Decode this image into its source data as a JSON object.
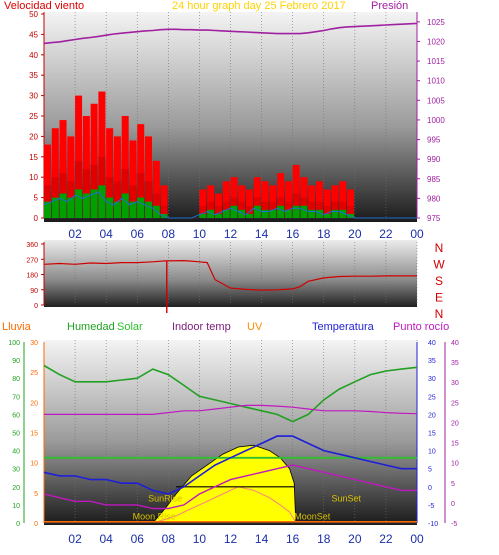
{
  "colors": {
    "wind": "#e00000",
    "gust": "#ff0000",
    "windAvg": "#00a000",
    "windLine": "#1e6fd0",
    "pressure": "#a020a0",
    "direction": "#d00000",
    "humidity": "#22a022",
    "solar": "#2ec02e",
    "indoor": "#1c9a1c",
    "uv": "#ff8c00",
    "temperature": "#1f1fd8",
    "dewpoint": "#c018c0",
    "sun": "#ffff00",
    "sunLine": "#ff8080",
    "title": "#ffd200",
    "rain": "#ff6a00"
  },
  "chart_data": [
    {
      "type": "bar",
      "title": "24 hour graph day   25 Febrero 2017",
      "left_label": "Velocidad viento",
      "right_label": "Presión",
      "x_ticks": [
        "02",
        "04",
        "06",
        "08",
        "10",
        "12",
        "14",
        "16",
        "18",
        "20",
        "22",
        "00"
      ],
      "y_left_ticks": [
        "0",
        "5",
        "10",
        "15",
        "20",
        "25",
        "30",
        "35",
        "40",
        "45",
        "50"
      ],
      "y_right_ticks": [
        "975",
        "980",
        "985",
        "990",
        "995",
        "1000",
        "1005",
        "1010",
        "1015",
        "1020",
        "1025"
      ],
      "y_left_range": [
        0,
        50
      ],
      "y_right_range": [
        975,
        1027
      ],
      "hours": [
        0,
        0.5,
        1,
        1.5,
        2,
        2.5,
        3,
        3.5,
        4,
        4.5,
        5,
        5.5,
        6,
        6.5,
        7,
        7.5,
        8,
        8.5,
        9,
        9.5,
        10,
        10.5,
        11,
        11.5,
        12,
        12.5,
        13,
        13.5,
        14,
        14.5,
        15,
        15.5,
        16,
        16.5,
        17,
        17.5,
        18,
        18.5,
        19,
        19.5,
        20,
        20.5,
        21,
        21.5,
        22,
        22.5,
        23,
        23.5,
        24
      ],
      "gust": [
        18,
        22,
        24,
        20,
        30,
        25,
        28,
        31,
        22,
        20,
        25,
        19,
        23,
        20,
        14,
        8,
        0,
        0,
        0,
        0,
        7,
        8,
        6,
        9,
        10,
        8,
        7,
        10,
        9,
        8,
        11,
        9,
        13,
        10,
        8,
        9,
        7,
        8,
        9,
        7,
        0,
        0,
        0,
        0,
        0,
        0,
        0,
        0,
        0
      ],
      "speed": [
        8,
        10,
        11,
        9,
        14,
        12,
        13,
        15,
        10,
        9,
        12,
        8,
        11,
        9,
        6,
        3,
        0,
        0,
        0,
        0,
        3,
        4,
        3,
        4,
        5,
        4,
        3,
        5,
        4,
        4,
        5,
        4,
        6,
        5,
        4,
        4,
        3,
        4,
        4,
        3,
        0,
        0,
        0,
        0,
        0,
        0,
        0,
        0,
        0
      ],
      "average": [
        4,
        5,
        6,
        5,
        7,
        6,
        7,
        8,
        5,
        4,
        6,
        4,
        5,
        4,
        3,
        1,
        0,
        0,
        0,
        0,
        1,
        2,
        1,
        2,
        3,
        2,
        1,
        3,
        2,
        2,
        3,
        2,
        3,
        3,
        2,
        2,
        1,
        2,
        2,
        1,
        0,
        0,
        0,
        0,
        0,
        0,
        0,
        0,
        0
      ],
      "pressure": [
        1019.5,
        1019.7,
        1019.9,
        1020.2,
        1020.5,
        1020.8,
        1021.0,
        1021.3,
        1021.6,
        1021.9,
        1022.1,
        1022.3,
        1022.5,
        1022.7,
        1022.8,
        1023.0,
        1023.1,
        1023.1,
        1023.0,
        1023.0,
        1022.9,
        1022.9,
        1022.8,
        1022.7,
        1022.6,
        1022.5,
        1022.4,
        1022.3,
        1022.2,
        1022.1,
        1022.0,
        1022.0,
        1022.0,
        1022.0,
        1022.2,
        1022.5,
        1022.8,
        1023.2,
        1023.5,
        1023.7,
        1023.8,
        1023.9,
        1024.0,
        1024.1,
        1024.2,
        1024.3,
        1024.4,
        1024.5,
        1024.6
      ]
    },
    {
      "type": "line",
      "right_cardinal_labels": [
        "N",
        "W",
        "S",
        "E",
        "N"
      ],
      "y_ticks": [
        "0",
        "90",
        "180",
        "270",
        "360"
      ],
      "y_range": [
        0,
        360
      ],
      "x_ticks": [
        "02",
        "04",
        "06",
        "08",
        "10",
        "12",
        "14",
        "16",
        "18",
        "20",
        "22",
        "00"
      ],
      "hours": [
        0,
        1,
        2,
        3,
        4,
        5,
        6,
        7,
        7.8,
        8,
        9,
        10,
        10.5,
        11,
        12,
        13,
        14,
        15,
        16,
        16.5,
        17,
        18,
        19,
        20,
        21,
        22,
        23,
        24
      ],
      "direction": [
        240,
        245,
        240,
        248,
        245,
        250,
        250,
        255,
        260,
        260,
        262,
        255,
        250,
        150,
        100,
        92,
        88,
        90,
        95,
        110,
        140,
        160,
        168,
        170,
        170,
        172,
        172,
        172
      ]
    },
    {
      "type": "line",
      "series_labels": [
        "Lluvia",
        "Humedad",
        "Solar",
        "Indoor temp",
        "UV",
        "Temperatura",
        "Punto rocío"
      ],
      "sun_labels": [
        "SunRise",
        "SunSet",
        "Moon Rise",
        "MoonSet"
      ],
      "x_ticks": [
        "02",
        "04",
        "06",
        "08",
        "10",
        "12",
        "14",
        "16",
        "18",
        "20",
        "22",
        "00"
      ],
      "y_axis1_ticks": [
        "0",
        "10",
        "20",
        "30",
        "40",
        "50",
        "60",
        "70",
        "80",
        "90",
        "100"
      ],
      "y_axis2_ticks": [
        "0",
        "5",
        "10",
        "15",
        "20",
        "25",
        "30"
      ],
      "y_axis3_ticks": [
        "-10",
        "-5",
        "0",
        "5",
        "10",
        "15",
        "20",
        "25",
        "30",
        "35",
        "40"
      ],
      "y_axis4_ticks": [
        "-5",
        "0",
        "5",
        "10",
        "15",
        "20",
        "25",
        "30",
        "35",
        "40"
      ],
      "humidity_range": [
        0,
        100
      ],
      "temperature_range": [
        -10,
        40
      ],
      "hours": [
        0,
        1,
        2,
        3,
        4,
        5,
        6,
        7,
        8,
        9,
        10,
        11,
        12,
        13,
        14,
        15,
        16,
        17,
        18,
        19,
        20,
        21,
        22,
        23,
        24
      ],
      "humidity": [
        87,
        82,
        78,
        78,
        78,
        79,
        80,
        85,
        82,
        76,
        70,
        68,
        66,
        64,
        62,
        60,
        56,
        60,
        68,
        74,
        78,
        82,
        84,
        85,
        86
      ],
      "temperature": [
        4,
        3,
        3,
        2,
        2,
        1,
        1,
        -1,
        -2,
        0,
        3,
        6,
        8,
        10,
        12,
        14,
        14,
        12,
        10,
        9,
        8,
        7,
        6,
        5,
        5
      ],
      "dewpoint": [
        -2,
        -3,
        -4,
        -4,
        -5,
        -5,
        -5,
        -6,
        -6,
        -5,
        -2,
        0,
        2,
        3,
        4,
        5,
        6,
        5,
        4,
        3,
        2,
        1,
        0,
        -1,
        -1
      ],
      "indoor_temp": [
        20,
        20,
        20,
        20,
        20,
        20,
        20,
        20,
        20.5,
        21,
        21,
        21.5,
        22,
        22.5,
        22.5,
        22.3,
        22,
        21.5,
        21,
        21,
        21,
        20.8,
        20.5,
        20.3,
        20.2
      ],
      "solar_flat": [
        8,
        8,
        8,
        8,
        8,
        8,
        8,
        8,
        8,
        8,
        8,
        8,
        8,
        8,
        8,
        8,
        8,
        8,
        8,
        8,
        8,
        8,
        8,
        8,
        8
      ],
      "sun_curve_hours": [
        7,
        7.8,
        8.5,
        9.5,
        10.5,
        11.5,
        12.5,
        13.5,
        14.5,
        15.2,
        15.8,
        16.1,
        16.2
      ],
      "sun_curve": [
        -10,
        -6,
        -2,
        3,
        6,
        9,
        11,
        11.5,
        10,
        8,
        5,
        1,
        -10
      ],
      "sunset_inner_curve": [
        -10,
        -9,
        -8,
        -6,
        -4,
        -2,
        0,
        -1,
        -3,
        -5,
        -7,
        -9,
        -10
      ],
      "rain": [
        0,
        0,
        0,
        0,
        0,
        0,
        0,
        0,
        0,
        0,
        0,
        0,
        0,
        0,
        0,
        0,
        0,
        0,
        0,
        0,
        0,
        0,
        0,
        0,
        0
      ]
    }
  ]
}
